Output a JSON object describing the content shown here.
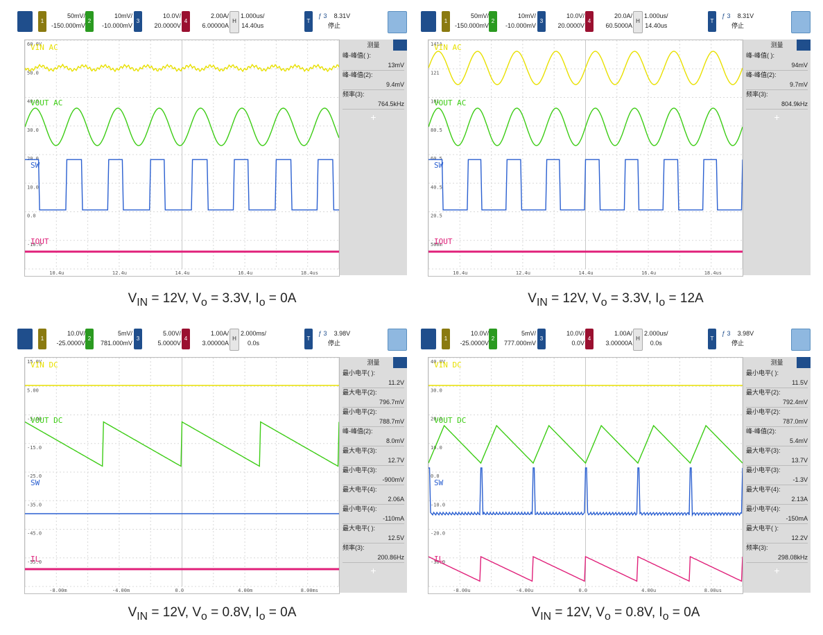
{
  "panels": [
    {
      "toolbar": {
        "ch1_scale": "50mV/",
        "ch1_off": "-150.000mV",
        "ch2_scale": "10mV/",
        "ch2_off": "-10.000mV",
        "ch3_scale": "10.0V/",
        "ch3_off": "20.0000V",
        "ch4_scale": "2.00A/",
        "ch4_off": "6.00000A",
        "time_scale": "1.000us/",
        "time_off": "14.40us",
        "trig_ch": "3",
        "trig_level": "8.31V",
        "status": "停止"
      },
      "measurements_title": "测量",
      "measurements": [
        {
          "k": "峰-峰值( ):",
          "v": "13mV"
        },
        {
          "k": "峰-峰值(2):",
          "v": "9.4mV"
        },
        {
          "k": "频率(3):",
          "v": "764.5kHz"
        }
      ],
      "caption": {
        "base": "V",
        "sub1": "IN",
        "t1": " = 12V, V",
        "sub2": "o",
        "t2": " = 3.3V, I",
        "sub3": "o",
        "t3": " = 0A"
      }
    },
    {
      "toolbar": {
        "ch1_scale": "50mV/",
        "ch1_off": "-150.000mV",
        "ch2_scale": "10mV/",
        "ch2_off": "-10.000mV",
        "ch3_scale": "10.0V/",
        "ch3_off": "20.0000V",
        "ch4_scale": "20.0A/",
        "ch4_off": "60.5000A",
        "time_scale": "1.000us/",
        "time_off": "14.40us",
        "trig_ch": "3",
        "trig_level": "8.31V",
        "status": "停止"
      },
      "measurements_title": "测量",
      "measurements": [
        {
          "k": "峰-峰值( ):",
          "v": "94mV"
        },
        {
          "k": "峰-峰值(2):",
          "v": "9.7mV"
        },
        {
          "k": "频率(3):",
          "v": "804.9kHz"
        }
      ],
      "caption": {
        "base": "V",
        "sub1": "IN",
        "t1": " = 12V, V",
        "sub2": "o",
        "t2": " = 3.3V, I",
        "sub3": "o",
        "t3": " = 12A"
      }
    },
    {
      "toolbar": {
        "ch1_scale": "10.0V/",
        "ch1_off": "-25.0000V",
        "ch2_scale": "5mV/",
        "ch2_off": "781.000mV",
        "ch3_scale": "5.00V/",
        "ch3_off": "5.0000V",
        "ch4_scale": "1.00A/",
        "ch4_off": "3.00000A",
        "time_scale": "2.000ms/",
        "time_off": "0.0s",
        "trig_ch": "3",
        "trig_level": "3.98V",
        "status": "停止"
      },
      "measurements_title": "测量",
      "measurements": [
        {
          "k": "最小电平( ):",
          "v": "11.2V"
        },
        {
          "k": "最大电平(2):",
          "v": "796.7mV"
        },
        {
          "k": "最小电平(2):",
          "v": "788.7mV"
        },
        {
          "k": "峰-峰值(2):",
          "v": "8.0mV"
        },
        {
          "k": "最大电平(3):",
          "v": "12.7V"
        },
        {
          "k": "最小电平(3):",
          "v": "-900mV"
        },
        {
          "k": "最大电平(4):",
          "v": "2.06A"
        },
        {
          "k": "最小电平(4):",
          "v": "-110mA"
        },
        {
          "k": "最大电平( ):",
          "v": "12.5V"
        },
        {
          "k": "频率(3):",
          "v": "200.86Hz"
        }
      ],
      "caption": {
        "base": "V",
        "sub1": "IN",
        "t1": " = 12V, V",
        "sub2": "o",
        "t2": " = 0.8V, I",
        "sub3": "o",
        "t3": " = 0A"
      }
    },
    {
      "toolbar": {
        "ch1_scale": "10.0V/",
        "ch1_off": "-25.0000V",
        "ch2_scale": "5mV/",
        "ch2_off": "777.000mV",
        "ch3_scale": "10.0V/",
        "ch3_off": "0.0V",
        "ch4_scale": "1.00A/",
        "ch4_off": "3.00000A",
        "time_scale": "2.000us/",
        "time_off": "0.0s",
        "trig_ch": "3",
        "trig_level": "3.98V",
        "status": "停止"
      },
      "measurements_title": "测量",
      "measurements": [
        {
          "k": "最小电平( ):",
          "v": "11.5V"
        },
        {
          "k": "最大电平(2):",
          "v": "792.4mV"
        },
        {
          "k": "最小电平(2):",
          "v": "787.0mV"
        },
        {
          "k": "峰-峰值(2):",
          "v": "5.4mV"
        },
        {
          "k": "最大电平(3):",
          "v": "13.7V"
        },
        {
          "k": "最小电平(3):",
          "v": "-1.3V"
        },
        {
          "k": "最大电平(4):",
          "v": "2.13A"
        },
        {
          "k": "最小电平(4):",
          "v": "-150mA"
        },
        {
          "k": "最大电平( ):",
          "v": "12.2V"
        },
        {
          "k": "频率(3):",
          "v": "298.08kHz"
        }
      ],
      "caption": {
        "base": "V",
        "sub1": "IN",
        "t1": " = 12V, V",
        "sub2": "o",
        "t2": " = 0.8V, I",
        "sub3": "o",
        "t3": " = 0A"
      }
    }
  ],
  "chart_data": [
    {
      "type": "line",
      "x_ticks": [
        "10.4u",
        "12.4u",
        "14.4u",
        "16.4u",
        "18.4us"
      ],
      "y_ticks": [
        "60.0V",
        "50.0",
        "40.0",
        "30.0",
        "20.0",
        "10.0",
        "0.0",
        "-10.0"
      ],
      "series": [
        {
          "name": "VIN AC",
          "shape": "noise"
        },
        {
          "name": "VOUT AC",
          "shape": "sine",
          "cycles": 7.6
        },
        {
          "name": "SW",
          "shape": "square",
          "cycles": 7.5
        },
        {
          "name": "IOUT",
          "shape": "flat"
        }
      ],
      "colors": {
        "ch1": "#e8e000",
        "ch2": "#3ccc14",
        "ch3": "#2a5fd0",
        "ch4": "#e0207a"
      }
    },
    {
      "type": "line",
      "x_ticks": [
        "10.4u",
        "12.4u",
        "14.4u",
        "16.4u",
        "18.4us"
      ],
      "y_ticks": [
        "141A",
        "121",
        "101",
        "80.5",
        "60.5",
        "40.5",
        "20.5",
        "500m"
      ],
      "series": [
        {
          "name": "VIN AC",
          "shape": "sine",
          "cycles": 8
        },
        {
          "name": "VOUT AC",
          "shape": "sine",
          "cycles": 8
        },
        {
          "name": "SW",
          "shape": "square",
          "cycles": 8
        },
        {
          "name": "IOUT",
          "shape": "flat"
        }
      ],
      "colors": {
        "ch1": "#e8e000",
        "ch2": "#3ccc14",
        "ch3": "#2a5fd0",
        "ch4": "#e0207a"
      }
    },
    {
      "type": "line",
      "x_ticks": [
        "-8.00m",
        "-4.00m",
        "0.0",
        "4.00m",
        "8.00ms"
      ],
      "y_ticks": [
        "15.0V",
        "5.00",
        "-5.00",
        "-15.0",
        "-25.0",
        "-35.0",
        "-45.0",
        "-55.0"
      ],
      "series": [
        {
          "name": "VIN DC",
          "shape": "flat"
        },
        {
          "name": "VOUT DC",
          "shape": "sawdown",
          "cycles": 4
        },
        {
          "name": "SW",
          "shape": "flat"
        },
        {
          "name": "IL",
          "shape": "flat"
        }
      ],
      "colors": {
        "ch1": "#e8e000",
        "ch2": "#3ccc14",
        "ch3": "#2a5fd0",
        "ch4": "#e0207a"
      }
    },
    {
      "type": "line",
      "x_ticks": [
        "-8.00u",
        "-4.00u",
        "0.0",
        "4.00u",
        "8.00us"
      ],
      "y_ticks": [
        "40.0V",
        "30.0",
        "20.0",
        "10.0",
        "0.0",
        "-10.0",
        "-20.0",
        "-30.0"
      ],
      "series": [
        {
          "name": "VIN DC",
          "shape": "flat"
        },
        {
          "name": "VOUT DC",
          "shape": "tri",
          "cycles": 6
        },
        {
          "name": "SW",
          "shape": "spike",
          "cycles": 6
        },
        {
          "name": "IL",
          "shape": "sawdown",
          "cycles": 6
        }
      ],
      "colors": {
        "ch1": "#e8e000",
        "ch2": "#3ccc14",
        "ch3": "#2a5fd0",
        "ch4": "#e0207a"
      }
    }
  ]
}
